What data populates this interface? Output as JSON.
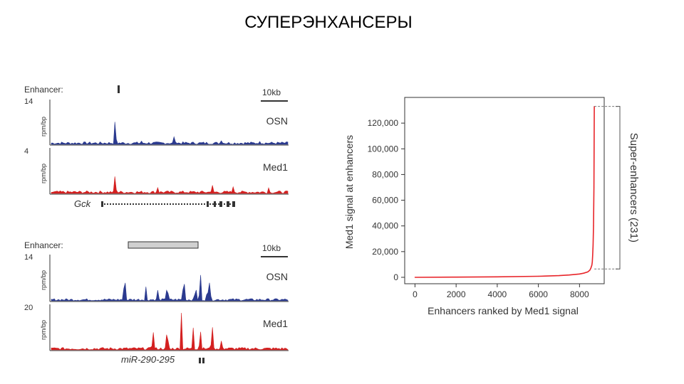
{
  "slide": {
    "title": "СУПЕРЭНХАНСЕРЫ"
  },
  "panel_tracks": {
    "top": {
      "enhancer_label": "Enhancer:",
      "scale_label": "10kb",
      "tracks": [
        {
          "name": "OSN",
          "ymax": "14",
          "ylabel": "rpm/bp",
          "color": "#2b3a8f",
          "peaks": [
            [
              0.27,
              0.75
            ],
            [
              0.52,
              0.25
            ],
            [
              0.38,
              0.1
            ],
            [
              0.72,
              0.12
            ],
            [
              0.88,
              0.1
            ]
          ]
        },
        {
          "name": "Med1",
          "ymax": "4",
          "ylabel": "rpm/bp",
          "color": "#d42020",
          "peaks": [
            [
              0.27,
              0.55
            ],
            [
              0.68,
              0.25
            ],
            [
              0.77,
              0.2
            ],
            [
              0.92,
              0.18
            ],
            [
              0.45,
              0.15
            ]
          ]
        }
      ],
      "gene_label": "Gck"
    },
    "bottom": {
      "enhancer_label": "Enhancer:",
      "scale_label": "10kb",
      "tracks": [
        {
          "name": "OSN",
          "ymax": "14",
          "ylabel": "rpm/bp",
          "color": "#2b3a8f",
          "peaks": [
            [
              0.31,
              0.9
            ],
            [
              0.4,
              0.4
            ],
            [
              0.45,
              0.3
            ],
            [
              0.49,
              0.55
            ],
            [
              0.56,
              0.85
            ],
            [
              0.61,
              0.5
            ],
            [
              0.63,
              0.9
            ],
            [
              0.66,
              0.45
            ],
            [
              0.67,
              0.7
            ]
          ]
        },
        {
          "name": "Med1",
          "ymax": "20",
          "ylabel": "rpm/bp",
          "color": "#d42020",
          "peaks": [
            [
              0.43,
              0.6
            ],
            [
              0.49,
              0.65
            ],
            [
              0.55,
              0.95
            ],
            [
              0.6,
              0.6
            ],
            [
              0.63,
              0.65
            ],
            [
              0.68,
              0.8
            ],
            [
              0.72,
              0.3
            ]
          ]
        }
      ],
      "gene_label": "miR-290-295"
    }
  },
  "chart_data": {
    "type": "line",
    "title": "",
    "xlabel": "Enhancers ranked by Med1 signal",
    "ylabel": "Med1 signal at enhancers",
    "xlim": [
      -500,
      9200
    ],
    "ylim": [
      -5000,
      140000
    ],
    "xticks": [
      0,
      2000,
      4000,
      6000,
      8000
    ],
    "xtick_labels": [
      "0",
      "2000",
      "4000",
      "6000",
      "8000"
    ],
    "yticks": [
      0,
      20000,
      40000,
      60000,
      80000,
      100000,
      120000
    ],
    "ytick_labels": [
      "0",
      "20,000",
      "40,000",
      "60,000",
      "80,000",
      "100,000",
      "120,000"
    ],
    "series": [
      {
        "color": "#e8252a",
        "x": [
          0,
          2000,
          4000,
          6000,
          7000,
          7500,
          8000,
          8200,
          8400,
          8500,
          8550,
          8600,
          8620,
          8640,
          8660,
          8680,
          8700,
          8720
        ],
        "y": [
          0,
          150,
          350,
          800,
          1300,
          1800,
          2600,
          3200,
          4200,
          5500,
          7000,
          9500,
          12000,
          17000,
          25000,
          40000,
          70000,
          133000
        ]
      }
    ],
    "annotation": {
      "label": "Super-enhancers (231)",
      "threshold_y": 6500,
      "top_y": 133000
    },
    "grid": false
  }
}
